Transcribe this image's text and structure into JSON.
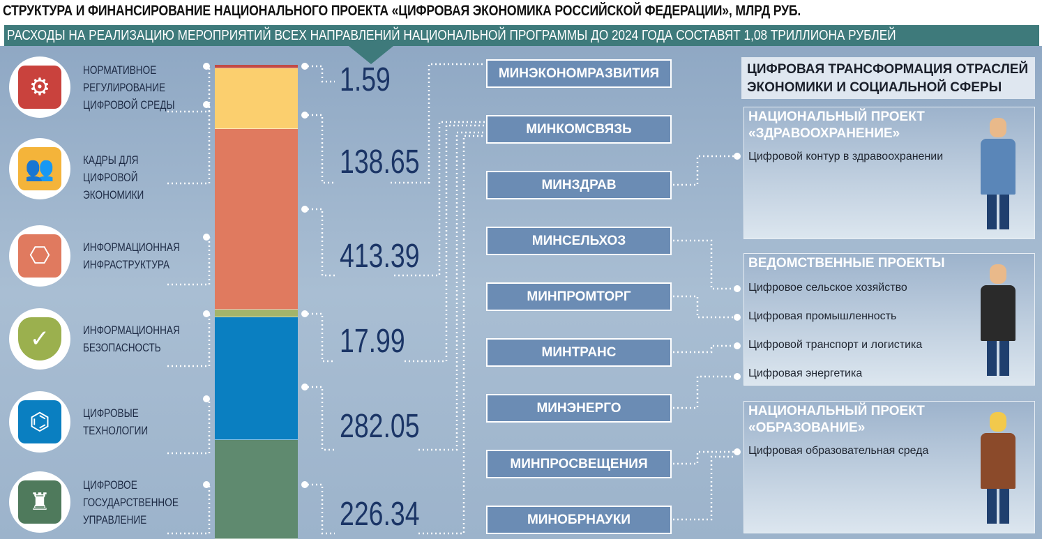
{
  "title": "СТРУКТУРА И ФИНАНСИРОВАНИЕ НАЦИОНАЛЬНОГО ПРОЕКТА «ЦИФРОВАЯ ЭКОНОМИКА РОССИЙСКОЙ ФЕДЕРАЦИИ», МЛРД РУБ.",
  "subtitle": "РАСХОДЫ НА РЕАЛИЗАЦИЮ МЕРОПРИЯТИЙ ВСЕХ НАПРАВЛЕНИЙ НАЦИОНАЛЬНОЙ ПРОГРАММЫ ДО 2024 ГОДА СОСТАВЯТ 1,08 ТРИЛЛИОНА РУБЛЕЙ",
  "chart_data": {
    "type": "bar",
    "stacked": true,
    "categories": [
      "Нормативное регулирование цифровой среды",
      "Кадры для цифровой экономики",
      "Информационная инфраструктура",
      "Информационная безопасность",
      "Цифровые технологии",
      "Цифровое государственное управление"
    ],
    "values": [
      1.59,
      138.65,
      413.39,
      17.99,
      282.05,
      226.34
    ],
    "value_labels": [
      "1.59",
      "138.65",
      "413.39",
      "17.99",
      "282.05",
      "226.34"
    ],
    "colors": [
      "#c24b45",
      "#fbcf6e",
      "#e07a5f",
      "#a3b46a",
      "#0a7fc1",
      "#5f8a6f"
    ],
    "icons": [
      "settings-window-icon",
      "people-icon",
      "flowchart-icon",
      "shield-check-icon",
      "circuit-icon",
      "kremlin-icon"
    ]
  },
  "ministries": [
    "МИНЭКОНОМРАЗВИТИЯ",
    "МИНКОМСВЯЗЬ",
    "МИНЗДРАВ",
    "МИНСЕЛЬХОЗ",
    "МИНПРОМТОРГ",
    "МИНТРАНС",
    "МИНЭНЕРГО",
    "МИНПРОСВЕЩЕНИЯ",
    "МИНОБРНАУКИ"
  ],
  "right": {
    "header": "ЦИФРОВАЯ ТРАНСФОРМАЦИЯ ОТРАСЛЕЙ ЭКОНОМИКИ И СОЦИАЛЬНОЙ СФЕРЫ",
    "panels": [
      {
        "title": "НАЦИОНАЛЬНЫЙ ПРОЕКТ «ЗДРАВООХРАНЕНИЕ»",
        "items": [
          "Цифровой контур в здравоохранении"
        ],
        "figure": "doctor-icon"
      },
      {
        "title": "ВЕДОМСТВЕННЫЕ ПРОЕКТЫ",
        "items": [
          "Цифровое сельское хозяйство",
          "Цифровая промышленность",
          "Цифровой транспорт и логистика",
          "Цифровая энергетика"
        ],
        "figure": "businessman-icon"
      },
      {
        "title": "НАЦИОНАЛЬНЫЙ ПРОЕКТ «ОБРАЗОВАНИЕ»",
        "items": [
          "Цифровая образовательная среда"
        ],
        "figure": "teacher-icon"
      }
    ]
  }
}
